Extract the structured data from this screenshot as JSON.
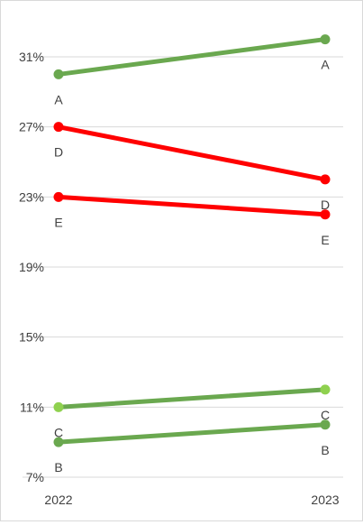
{
  "chart_data": {
    "type": "line",
    "x": [
      "2022",
      "2023"
    ],
    "ylim": [
      7,
      31
    ],
    "yticks": [
      7,
      11,
      15,
      19,
      23,
      27,
      31
    ],
    "ytick_labels": [
      "7%",
      "11%",
      "15%",
      "19%",
      "23%",
      "27%",
      "31%"
    ],
    "grid": true,
    "series": [
      {
        "name": "A",
        "values": [
          30,
          32
        ],
        "color": "#6aa84f"
      },
      {
        "name": "D",
        "values": [
          27,
          24
        ],
        "color": "#ff0000"
      },
      {
        "name": "E",
        "values": [
          23,
          22
        ],
        "color": "#ff0000"
      },
      {
        "name": "C",
        "values": [
          11,
          12
        ],
        "color": "#6aa84f",
        "marker_color": "#8fd14f"
      },
      {
        "name": "B",
        "values": [
          9,
          10
        ],
        "color": "#6aa84f"
      }
    ]
  }
}
